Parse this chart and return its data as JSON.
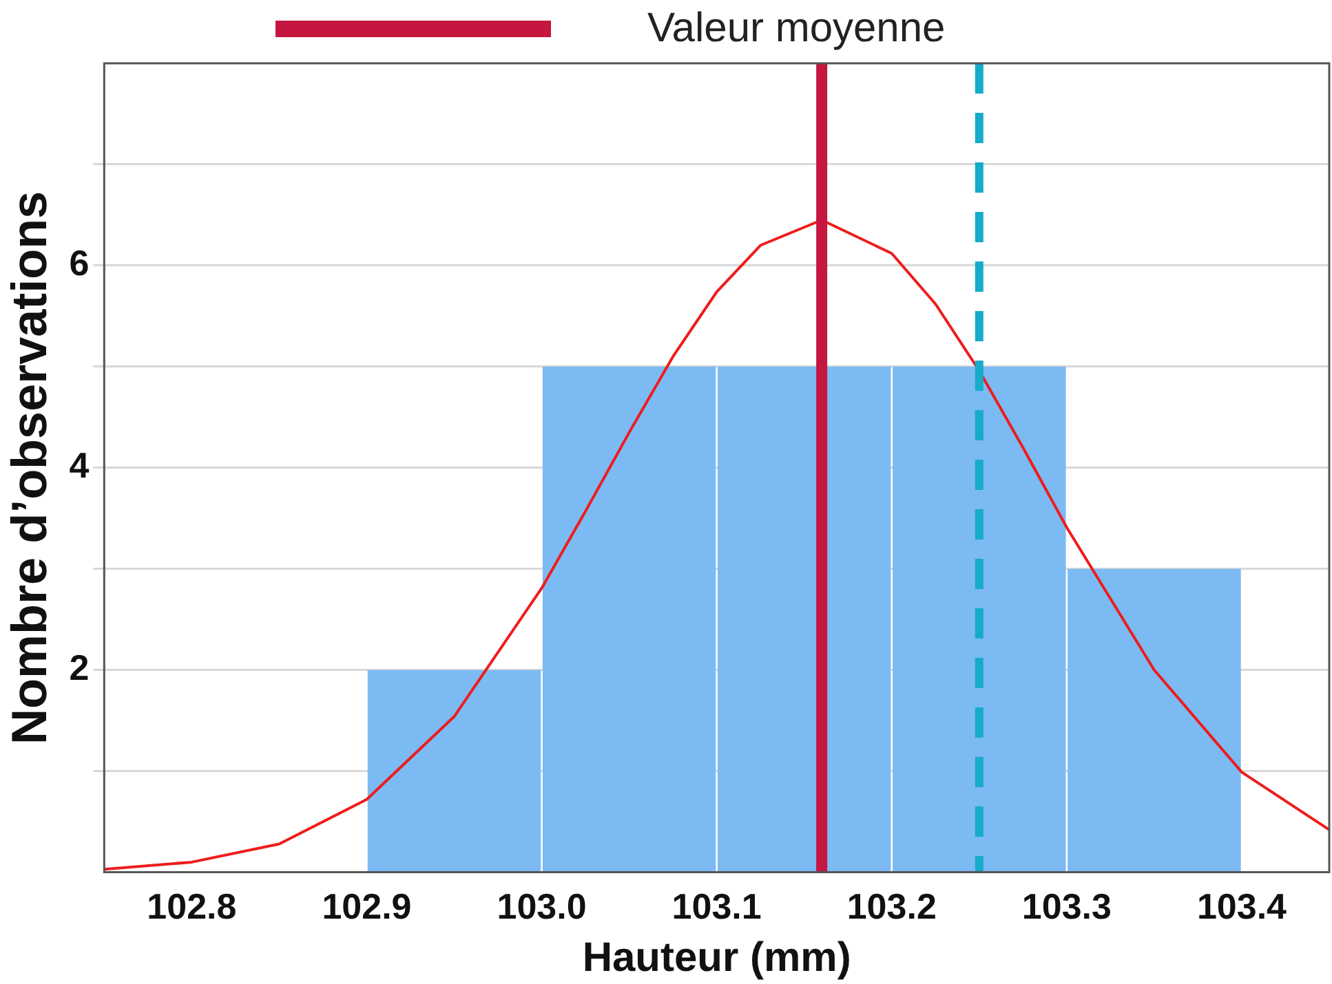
{
  "chart_data": {
    "type": "histogram",
    "xlabel": "Hauteur (mm)",
    "ylabel": "Nombre d’observations",
    "bins": [
      102.9,
      103.0,
      103.1,
      103.2,
      103.3,
      103.4
    ],
    "values": [
      2,
      5,
      5,
      5,
      3
    ],
    "color": "#7cbaf4",
    "series": [
      {
        "type": "line",
        "color": "#ee1c1c",
        "x": [
          102.75,
          102.8,
          102.85,
          102.9,
          102.95,
          103.0,
          103.025,
          103.05,
          103.075,
          103.1,
          103.125,
          103.16,
          103.2,
          103.225,
          103.25,
          103.275,
          103.3,
          103.35,
          103.4,
          103.45
        ],
        "values": [
          0.03,
          0.1,
          0.28,
          0.72,
          1.54,
          2.81,
          3.57,
          4.35,
          5.1,
          5.74,
          6.2,
          6.45,
          6.12,
          5.62,
          4.96,
          4.2,
          3.41,
          2.0,
          0.99,
          0.42
        ]
      }
    ],
    "ref_lines": [
      {
        "axis": "x",
        "value": 103.16,
        "label": "Valeur moyenne",
        "color": "#c4163f",
        "line_style": "solid"
      },
      {
        "axis": "x",
        "value": 103.25,
        "label": null,
        "color": "#17abca",
        "line_style": "dashed"
      }
    ],
    "xlim": [
      102.75,
      103.45
    ],
    "ylim": [
      0,
      8
    ],
    "xticks": [
      {
        "value": 102.8,
        "label": "102.8"
      },
      {
        "value": 102.9,
        "label": "102.9"
      },
      {
        "value": 103.0,
        "label": "103.0"
      },
      {
        "value": 103.1,
        "label": "103.1"
      },
      {
        "value": 103.2,
        "label": "103.2"
      },
      {
        "value": 103.3,
        "label": "103.3"
      },
      {
        "value": 103.4,
        "label": "103.4"
      }
    ],
    "yticks": [
      {
        "value": 1,
        "label": null
      },
      2,
      {
        "value": 3,
        "label": null
      },
      4,
      {
        "value": 5,
        "label": null
      },
      6,
      {
        "value": 7,
        "label": null
      }
    ],
    "grid": "y",
    "legend": "top",
    "marker": "none"
  }
}
